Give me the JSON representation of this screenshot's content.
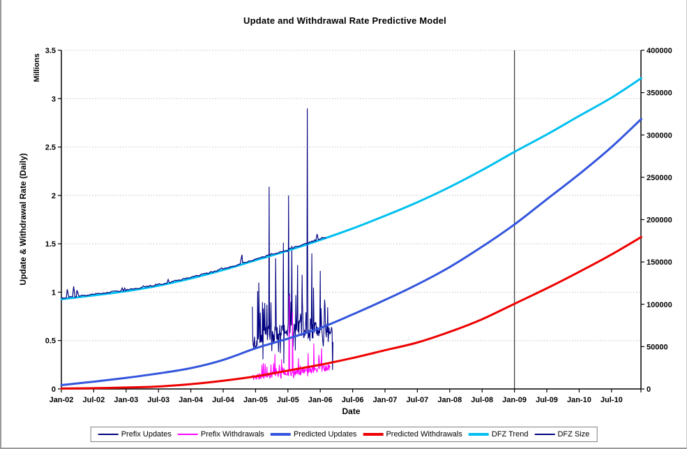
{
  "chart_data": {
    "type": "line",
    "title": "Update and Withdrawal Rate Predictive Model",
    "xlabel": "Date",
    "ylabel_left": "Update & Withdrawal Rate (Daily)",
    "ylabel_left_units": "Millions",
    "ylim_left": [
      0,
      3.5
    ],
    "yticks_left": [
      0,
      0.5,
      1,
      1.5,
      2,
      2.5,
      3,
      3.5
    ],
    "ytick_labels_left": [
      "0",
      "0.5",
      "1",
      "1.5",
      "2",
      "2.5",
      "3",
      "3.5"
    ],
    "ylim_right": [
      0,
      400000
    ],
    "yticks_right": [
      0,
      50000,
      100000,
      150000,
      200000,
      250000,
      300000,
      350000,
      400000
    ],
    "ytick_labels_right": [
      "0",
      "50000",
      "100000",
      "150000",
      "200000",
      "250000",
      "300000",
      "350000",
      "400000"
    ],
    "grid": "horizontal-dotted",
    "grid_color": "#c0c0c0",
    "axis_color": "#000000",
    "legend_position": "bottom-center",
    "x_range_years": [
      2002.0,
      2010.96
    ],
    "x_ticks": [
      {
        "label": "Jan-02",
        "t": 2002.0
      },
      {
        "label": "Jul-02",
        "t": 2002.5
      },
      {
        "label": "Jan-03",
        "t": 2003.0
      },
      {
        "label": "Jul-03",
        "t": 2003.5
      },
      {
        "label": "Jan-04",
        "t": 2004.0
      },
      {
        "label": "Jul-04",
        "t": 2004.5
      },
      {
        "label": "Jan-05",
        "t": 2005.0
      },
      {
        "label": "Jul-05",
        "t": 2005.5
      },
      {
        "label": "Jan-06",
        "t": 2006.0
      },
      {
        "label": "Jul-06",
        "t": 2006.5
      },
      {
        "label": "Jan-07",
        "t": 2007.0
      },
      {
        "label": "Jul-07",
        "t": 2007.5
      },
      {
        "label": "Jan-08",
        "t": 2008.0
      },
      {
        "label": "Jul-08",
        "t": 2008.5
      },
      {
        "label": "Jan-09",
        "t": 2009.0
      },
      {
        "label": "Jul-09",
        "t": 2009.5
      },
      {
        "label": "Jan-10",
        "t": 2010.0
      },
      {
        "label": "Jul-10",
        "t": 2010.5
      }
    ],
    "marker_line": {
      "t": 2009.0,
      "color": "#404040",
      "note": "vertical divider at Jan-09"
    },
    "series": [
      {
        "name": "Prefix Updates",
        "color": "#000080",
        "width": 1.1,
        "axis": "left",
        "style": "noisy",
        "anchors": [
          [
            2004.95,
            0.47
          ],
          [
            2005.2,
            0.55
          ],
          [
            2005.5,
            0.6
          ],
          [
            2005.8,
            0.63
          ],
          [
            2006.0,
            0.6
          ],
          [
            2006.2,
            0.55
          ]
        ],
        "noise": {
          "step_days": 2.5,
          "amp": 0.11,
          "up_chance": 0.17,
          "up_max": 0.5,
          "down_chance": 0.12,
          "down_max": 0.28,
          "bias": 0,
          "seed": 7
        },
        "spikes": [
          [
            2005.05,
            1.1
          ],
          [
            2005.21,
            2.09
          ],
          [
            2005.31,
            1.35
          ],
          [
            2005.43,
            1.51
          ],
          [
            2005.51,
            2.0
          ],
          [
            2005.56,
            1.48
          ],
          [
            2005.65,
            1.28
          ],
          [
            2005.72,
            1.18
          ],
          [
            2005.8,
            2.9
          ],
          [
            2005.87,
            1.4
          ],
          [
            2006.0,
            1.22
          ]
        ]
      },
      {
        "name": "Prefix Withdrawals",
        "color": "#FF00FF",
        "width": 1.1,
        "axis": "left",
        "style": "noisy",
        "anchors": [
          [
            2004.95,
            0.12
          ],
          [
            2005.3,
            0.15
          ],
          [
            2005.6,
            0.17
          ],
          [
            2006.0,
            0.21
          ],
          [
            2006.15,
            0.23
          ]
        ],
        "noise": {
          "step_days": 2.5,
          "amp": 0.035,
          "up_chance": 0.12,
          "up_max": 0.18,
          "down_chance": 0.05,
          "down_max": 0.06,
          "bias": 0,
          "seed": 11
        },
        "spikes": [
          [
            2005.3,
            0.36
          ],
          [
            2005.52,
            0.97
          ],
          [
            2005.57,
            0.79
          ],
          [
            2005.9,
            0.47
          ],
          [
            2006.02,
            0.42
          ]
        ]
      },
      {
        "name": "Predicted Updates",
        "color": "#3355DC",
        "width": 3,
        "axis": "left",
        "style": "smooth",
        "points": [
          [
            2002.0,
            0.04
          ],
          [
            2002.5,
            0.075
          ],
          [
            2003.0,
            0.115
          ],
          [
            2003.5,
            0.16
          ],
          [
            2004.0,
            0.215
          ],
          [
            2004.5,
            0.3
          ],
          [
            2005.0,
            0.42
          ],
          [
            2005.5,
            0.52
          ],
          [
            2006.0,
            0.63
          ],
          [
            2006.5,
            0.77
          ],
          [
            2007.0,
            0.92
          ],
          [
            2007.5,
            1.08
          ],
          [
            2008.0,
            1.26
          ],
          [
            2008.5,
            1.47
          ],
          [
            2009.0,
            1.7
          ],
          [
            2009.5,
            1.96
          ],
          [
            2010.0,
            2.22
          ],
          [
            2010.5,
            2.5
          ],
          [
            2010.96,
            2.79
          ]
        ]
      },
      {
        "name": "Predicted Withdrawals",
        "color": "#EE0000",
        "width": 3,
        "axis": "left",
        "style": "smooth",
        "points": [
          [
            2002.0,
            0.004
          ],
          [
            2002.5,
            0.008
          ],
          [
            2003.0,
            0.015
          ],
          [
            2003.5,
            0.025
          ],
          [
            2004.0,
            0.05
          ],
          [
            2004.5,
            0.085
          ],
          [
            2005.0,
            0.13
          ],
          [
            2005.5,
            0.19
          ],
          [
            2006.0,
            0.25
          ],
          [
            2006.5,
            0.32
          ],
          [
            2007.0,
            0.4
          ],
          [
            2007.5,
            0.48
          ],
          [
            2008.0,
            0.59
          ],
          [
            2008.5,
            0.72
          ],
          [
            2009.0,
            0.88
          ],
          [
            2009.5,
            1.04
          ],
          [
            2010.0,
            1.21
          ],
          [
            2010.5,
            1.39
          ],
          [
            2010.96,
            1.57
          ]
        ]
      },
      {
        "name": "DFZ Trend",
        "color": "#00C0F0",
        "width": 3,
        "axis": "right",
        "style": "smooth",
        "points": [
          [
            2002.0,
            106000
          ],
          [
            2002.5,
            110500
          ],
          [
            2003.0,
            115500
          ],
          [
            2003.5,
            122000
          ],
          [
            2004.0,
            130500
          ],
          [
            2004.5,
            140500
          ],
          [
            2005.0,
            152000
          ],
          [
            2005.5,
            163500
          ],
          [
            2006.0,
            176000
          ],
          [
            2006.5,
            189500
          ],
          [
            2007.0,
            204500
          ],
          [
            2007.5,
            220500
          ],
          [
            2008.0,
            238500
          ],
          [
            2008.5,
            258500
          ],
          [
            2009.0,
            280000
          ],
          [
            2009.5,
            300500
          ],
          [
            2010.0,
            322500
          ],
          [
            2010.5,
            344000
          ],
          [
            2010.96,
            367000
          ]
        ]
      },
      {
        "name": "DFZ Size",
        "color": "#000080",
        "width": 1.2,
        "axis": "right",
        "style": "noisy",
        "anchors": [
          [
            2002.0,
            106500
          ],
          [
            2002.5,
            111000
          ],
          [
            2003.0,
            116000
          ],
          [
            2003.5,
            122500
          ],
          [
            2004.0,
            131000
          ],
          [
            2004.5,
            141000
          ],
          [
            2005.0,
            152500
          ],
          [
            2005.5,
            164000
          ],
          [
            2006.0,
            176500
          ],
          [
            2006.1,
            178500
          ]
        ],
        "noise": {
          "step_days": 7,
          "amp": 900,
          "up_chance": 0.05,
          "up_max": 3000,
          "down_chance": 0.03,
          "down_max": 1800,
          "bias": 700,
          "seed": 3
        },
        "spikes": [
          [
            2002.09,
            117700
          ],
          [
            2002.19,
            121100
          ],
          [
            2002.24,
            116600
          ],
          [
            2004.79,
            158500
          ],
          [
            2005.95,
            183000
          ]
        ]
      }
    ]
  }
}
